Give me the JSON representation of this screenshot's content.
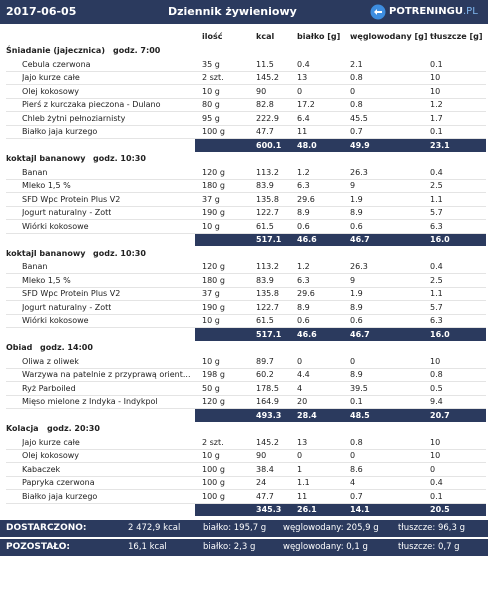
{
  "header": {
    "date": "2017-06-05",
    "title": "Dziennik żywieniowy",
    "logo_main": "POTRENINGU",
    "logo_suffix": ".PL"
  },
  "columns": [
    "ilość",
    "kcal",
    "białko [g]",
    "węglowodany [g]",
    "tłuszcze [g]"
  ],
  "meals": [
    {
      "name": "Śniadanie (jajecznica)",
      "time": "godz. 7:00",
      "items": [
        [
          "Cebula czerwona",
          "35 g",
          "11.5",
          "0.4",
          "2.1",
          "0.1"
        ],
        [
          "Jajo kurze całe",
          "2 szt.",
          "145.2",
          "13",
          "0.8",
          "10"
        ],
        [
          "Olej kokosowy",
          "10 g",
          "90",
          "0",
          "0",
          "10"
        ],
        [
          "Pierś z kurczaka pieczona - Dulano",
          "80 g",
          "82.8",
          "17.2",
          "0.8",
          "1.2"
        ],
        [
          "Chleb żytni pełnoziarnisty",
          "95 g",
          "222.9",
          "6.4",
          "45.5",
          "1.7"
        ],
        [
          "Białko jaja kurzego",
          "100 g",
          "47.7",
          "11",
          "0.7",
          "0.1"
        ]
      ],
      "total": [
        "600.1",
        "48.0",
        "49.9",
        "23.1"
      ]
    },
    {
      "name": "koktajl bananowy",
      "time": "godz. 10:30",
      "items": [
        [
          "Banan",
          "120 g",
          "113.2",
          "1.2",
          "26.3",
          "0.4"
        ],
        [
          "Mleko  1,5 %",
          "180 g",
          "83.9",
          "6.3",
          "9",
          "2.5"
        ],
        [
          "SFD Wpc Protein Plus V2",
          "37 g",
          "135.8",
          "29.6",
          "1.9",
          "1.1"
        ],
        [
          "Jogurt naturalny - Zott",
          "190 g",
          "122.7",
          "8.9",
          "8.9",
          "5.7"
        ],
        [
          "Wiórki kokosowe",
          "10 g",
          "61.5",
          "0.6",
          "0.6",
          "6.3"
        ]
      ],
      "total": [
        "517.1",
        "46.6",
        "46.7",
        "16.0"
      ]
    },
    {
      "name": "koktajl bananowy",
      "time": "godz. 10:30",
      "items": [
        [
          "Banan",
          "120 g",
          "113.2",
          "1.2",
          "26.3",
          "0.4"
        ],
        [
          "Mleko  1,5 %",
          "180 g",
          "83.9",
          "6.3",
          "9",
          "2.5"
        ],
        [
          "SFD Wpc Protein Plus V2",
          "37 g",
          "135.8",
          "29.6",
          "1.9",
          "1.1"
        ],
        [
          "Jogurt naturalny - Zott",
          "190 g",
          "122.7",
          "8.9",
          "8.9",
          "5.7"
        ],
        [
          "Wiórki kokosowe",
          "10 g",
          "61.5",
          "0.6",
          "0.6",
          "6.3"
        ]
      ],
      "total": [
        "517.1",
        "46.6",
        "46.7",
        "16.0"
      ]
    },
    {
      "name": "Obiad",
      "time": "godz. 14:00",
      "items": [
        [
          "Oliwa z oliwek",
          "10 g",
          "89.7",
          "0",
          "0",
          "10"
        ],
        [
          "Warzywa na patelnie z przyprawą orient...",
          "198 g",
          "60.2",
          "4.4",
          "8.9",
          "0.8"
        ],
        [
          "Ryż Parboiled",
          "50 g",
          "178.5",
          "4",
          "39.5",
          "0.5"
        ],
        [
          "Mięso mielone z Indyka - Indykpol",
          "120 g",
          "164.9",
          "20",
          "0.1",
          "9.4"
        ]
      ],
      "total": [
        "493.3",
        "28.4",
        "48.5",
        "20.7"
      ]
    },
    {
      "name": "Kolacja",
      "time": "godz. 20:30",
      "items": [
        [
          "Jajo kurze całe",
          "2 szt.",
          "145.2",
          "13",
          "0.8",
          "10"
        ],
        [
          "Olej kokosowy",
          "10 g",
          "90",
          "0",
          "0",
          "10"
        ],
        [
          "Kabaczek",
          "100 g",
          "38.4",
          "1",
          "8.6",
          "0"
        ],
        [
          "Papryka czerwona",
          "100 g",
          "24",
          "1.1",
          "4",
          "0.4"
        ],
        [
          "Białko jaja kurzego",
          "100 g",
          "47.7",
          "11",
          "0.7",
          "0.1"
        ]
      ],
      "total": [
        "345.3",
        "26.1",
        "14.1",
        "20.5"
      ]
    }
  ],
  "footer": [
    [
      "DOSTARCZONO:",
      "2 472,9 kcal",
      "białko: 195,7 g",
      "węglowodany: 205,9 g",
      "tłuszcze: 96,3 g"
    ],
    [
      "POZOSTAŁO:",
      "16,1 kcal",
      "białko: 2,3 g",
      "węglowodany: 0,1 g",
      "tłuszcze: 0,7 g"
    ]
  ]
}
